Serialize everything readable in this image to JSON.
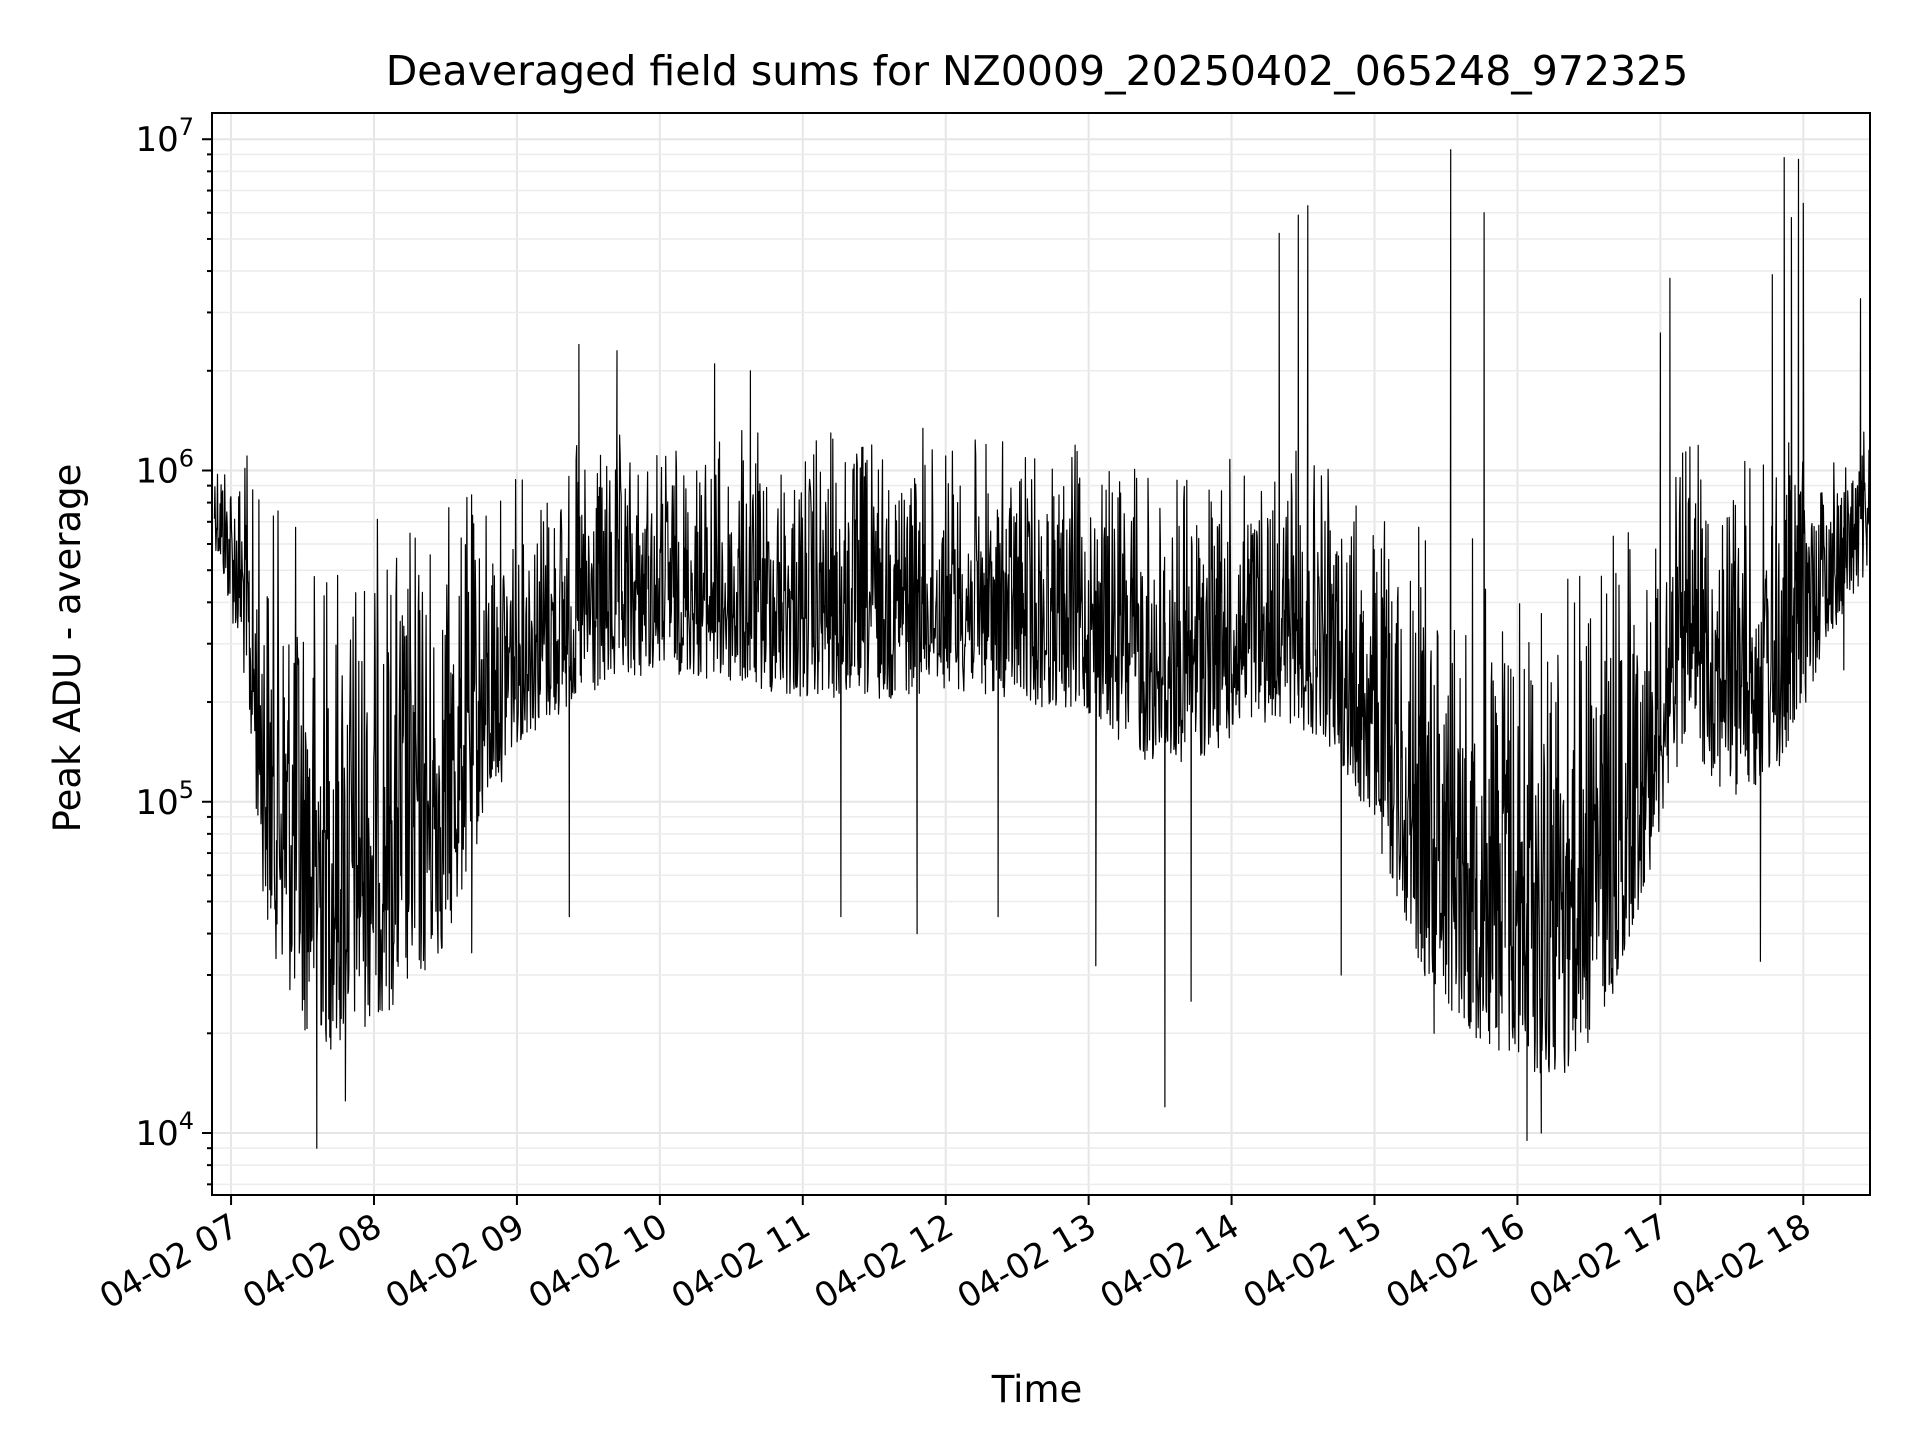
{
  "chart_data": {
    "type": "line",
    "title": "Deaveraged field sums for NZ0009_20250402_065248_972325",
    "xlabel": "Time",
    "ylabel": "Peak ADU - average",
    "yscale": "log",
    "grid": true,
    "xlim": [
      "2025-04-02 06:52",
      "2025-04-02 18:28"
    ],
    "ylim": [
      6500,
      12000000
    ],
    "x_tick_labels": [
      "04-02 07",
      "04-02 08",
      "04-02 09",
      "04-02 10",
      "04-02 11",
      "04-02 12",
      "04-02 13",
      "04-02 14",
      "04-02 15",
      "04-02 16",
      "04-02 17",
      "04-02 18"
    ],
    "y_tick_labels": [
      {
        "base": "10",
        "exp": "4"
      },
      {
        "base": "10",
        "exp": "5"
      },
      {
        "base": "10",
        "exp": "6"
      },
      {
        "base": "10",
        "exp": "7"
      }
    ],
    "series": [
      {
        "color": "#000000",
        "envelope": {
          "x": [
            "2025-04-02 06:53",
            "2025-04-02 07:05",
            "2025-04-02 07:15",
            "2025-04-02 07:30",
            "2025-04-02 07:45",
            "2025-04-02 08:00",
            "2025-04-02 08:15",
            "2025-04-02 08:30",
            "2025-04-02 08:45",
            "2025-04-02 09:00",
            "2025-04-02 09:30",
            "2025-04-02 10:00",
            "2025-04-02 10:30",
            "2025-04-02 11:00",
            "2025-04-02 11:30",
            "2025-04-02 12:00",
            "2025-04-02 12:30",
            "2025-04-02 13:00",
            "2025-04-02 13:30",
            "2025-04-02 14:00",
            "2025-04-02 14:20",
            "2025-04-02 14:40",
            "2025-04-02 15:00",
            "2025-04-02 15:20",
            "2025-04-02 15:40",
            "2025-04-02 16:00",
            "2025-04-02 16:20",
            "2025-04-02 16:40",
            "2025-04-02 16:55",
            "2025-04-02 17:10",
            "2025-04-02 17:30",
            "2025-04-02 17:50",
            "2025-04-02 18:10",
            "2025-04-02 18:28"
          ],
          "upper": [
            1400000,
            1300000,
            950000,
            850000,
            800000,
            850000,
            900000,
            950000,
            1000000,
            1100000,
            1300000,
            1350000,
            1400000,
            1400000,
            1450000,
            1400000,
            1300000,
            1250000,
            1200000,
            1150000,
            1200000,
            1100000,
            900000,
            780000,
            720000,
            700000,
            700000,
            750000,
            850000,
            1300000,
            1350000,
            1300000,
            1300000,
            1400000
          ],
          "lower": [
            600000,
            250000,
            40000,
            20000,
            17000,
            22000,
            25000,
            35000,
            80000,
            150000,
            200000,
            250000,
            220000,
            200000,
            200000,
            220000,
            200000,
            180000,
            120000,
            150000,
            180000,
            150000,
            80000,
            30000,
            20000,
            15000,
            14000,
            25000,
            60000,
            150000,
            100000,
            120000,
            300000,
            500000
          ]
        },
        "spikes": [
          {
            "x": "2025-04-02 07:36",
            "y": 9000
          },
          {
            "x": "2025-04-02 07:48",
            "y": 12500
          },
          {
            "x": "2025-04-02 08:41",
            "y": 35000
          },
          {
            "x": "2025-04-02 09:22",
            "y": 45000
          },
          {
            "x": "2025-04-02 09:26",
            "y": 2400000
          },
          {
            "x": "2025-04-02 09:42",
            "y": 2300000
          },
          {
            "x": "2025-04-02 10:23",
            "y": 2100000
          },
          {
            "x": "2025-04-02 10:38",
            "y": 2000000
          },
          {
            "x": "2025-04-02 11:16",
            "y": 45000
          },
          {
            "x": "2025-04-02 11:48",
            "y": 40000
          },
          {
            "x": "2025-04-02 12:22",
            "y": 45000
          },
          {
            "x": "2025-04-02 13:03",
            "y": 32000
          },
          {
            "x": "2025-04-02 13:32",
            "y": 12000
          },
          {
            "x": "2025-04-02 13:43",
            "y": 25000
          },
          {
            "x": "2025-04-02 14:20",
            "y": 5200000
          },
          {
            "x": "2025-04-02 14:28",
            "y": 5900000
          },
          {
            "x": "2025-04-02 14:32",
            "y": 6300000
          },
          {
            "x": "2025-04-02 14:46",
            "y": 30000
          },
          {
            "x": "2025-04-02 15:25",
            "y": 20000
          },
          {
            "x": "2025-04-02 15:32",
            "y": 9300000
          },
          {
            "x": "2025-04-02 15:46",
            "y": 6000000
          },
          {
            "x": "2025-04-02 16:04",
            "y": 9500
          },
          {
            "x": "2025-04-02 16:10",
            "y": 10000
          },
          {
            "x": "2025-04-02 17:00",
            "y": 2600000
          },
          {
            "x": "2025-04-02 17:04",
            "y": 3800000
          },
          {
            "x": "2025-04-02 17:42",
            "y": 33000
          },
          {
            "x": "2025-04-02 17:47",
            "y": 3900000
          },
          {
            "x": "2025-04-02 17:52",
            "y": 8800000
          },
          {
            "x": "2025-04-02 17:55",
            "y": 5800000
          },
          {
            "x": "2025-04-02 17:58",
            "y": 8700000
          },
          {
            "x": "2025-04-02 18:00",
            "y": 6400000
          },
          {
            "x": "2025-04-02 18:17",
            "y": 250000
          },
          {
            "x": "2025-04-02 18:24",
            "y": 3300000
          }
        ]
      }
    ]
  }
}
